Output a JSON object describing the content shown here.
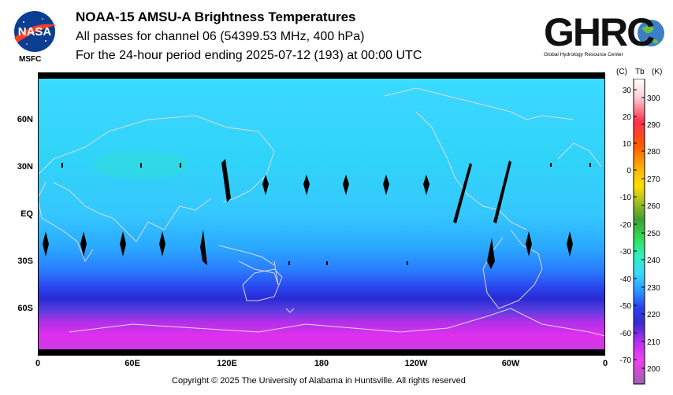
{
  "header": {
    "title": "NOAA-15 AMSU-A Brightness Temperatures",
    "subtitle1": "All passes for channel 06 (54399.53 MHz, 400 hPa)",
    "subtitle2": "For the 24-hour period ending 2025-07-12 (193) at 00:00 UTC"
  },
  "logos": {
    "nasa_text": "NASA",
    "msfc_label": "MSFC",
    "ghrc_text": "GHRC",
    "ghrc_tagline": "Global Hydrology Resource Center"
  },
  "map": {
    "lat_labels": [
      "60N",
      "30N",
      "EQ",
      "30S",
      "60S"
    ],
    "lon_labels": [
      "0",
      "60E",
      "120E",
      "180",
      "120W",
      "60W",
      "0"
    ]
  },
  "colorbar": {
    "c_unit": "(C)",
    "tb_label": "Tb",
    "k_unit": "(K)",
    "celsius_ticks": [
      "30",
      "20",
      "10",
      "0",
      "-10",
      "-20",
      "-30",
      "-40",
      "-50",
      "-60",
      "-70"
    ],
    "kelvin_ticks": [
      "300",
      "290",
      "280",
      "270",
      "260",
      "250",
      "240",
      "230",
      "220",
      "210",
      "200"
    ]
  },
  "footer": {
    "copyright": "Copyright © 2025 The University of Alabama in Huntsville.  All rights reserved"
  },
  "colors": {
    "tropics": "#36d7ff",
    "midlat": "#2f9bff",
    "south_band": "#2a2ad8",
    "polar": "#d82cf0",
    "coast": "#d9d9d9",
    "gap": "#000000"
  }
}
